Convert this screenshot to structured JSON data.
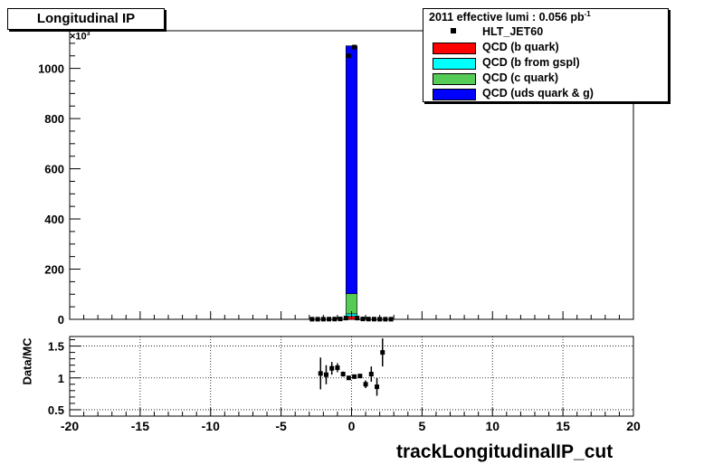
{
  "title": "Longitudinal IP",
  "legend": {
    "header": "2011 effective lumi : 0.056  pb",
    "header_sup": "-1",
    "items": [
      {
        "label": "HLT_JET60",
        "kind": "marker",
        "color": "#000000"
      },
      {
        "label": "QCD (b quark)",
        "kind": "fill",
        "color": "#ff0000"
      },
      {
        "label": "QCD (b from gspl)",
        "kind": "fill",
        "color": "#00ffff"
      },
      {
        "label": "QCD (c quark)",
        "kind": "fill",
        "color": "#55cc55"
      },
      {
        "label": "QCD (uds quark & g)",
        "kind": "fill",
        "color": "#0000ff"
      }
    ]
  },
  "xlabel": "trackLongitudinalIP_cut",
  "ratio_ylabel": "Data/MC",
  "y_exponent": "×10",
  "y_exponent_sup": "3",
  "chart_data": [
    {
      "type": "bar",
      "stacked": true,
      "xlim": [
        -20,
        20
      ],
      "ylim": [
        0,
        1150
      ],
      "y_scale_factor": 1000,
      "xticks": [
        "-20",
        "-15",
        "-10",
        "-5",
        "0",
        "5",
        "10",
        "15",
        "20"
      ],
      "yticks": [
        "0",
        "200",
        "400",
        "600",
        "800",
        "1000"
      ],
      "bin_width": 0.8,
      "bins": [
        -0.4
      ],
      "series": [
        {
          "name": "QCD (b quark)",
          "color": "#ff0000",
          "values": [
            12
          ]
        },
        {
          "name": "QCD (b from gspl)",
          "color": "#00ffff",
          "values": [
            10
          ]
        },
        {
          "name": "QCD (c quark)",
          "color": "#55cc55",
          "values": [
            80
          ]
        },
        {
          "name": "QCD (uds quark & g)",
          "color": "#0000ff",
          "values": [
            988
          ]
        }
      ],
      "data_series": {
        "name": "HLT_JET60",
        "x": [
          -2.8,
          -2.4,
          -2.0,
          -1.6,
          -1.2,
          -0.8,
          -0.4,
          -0.2,
          0.2,
          0.4,
          0.8,
          1.2,
          1.6,
          2.0,
          2.4,
          2.8
        ],
        "y": [
          0.5,
          0.5,
          0.6,
          0.8,
          1.0,
          1.5,
          5,
          1050,
          1085,
          5,
          1.5,
          1.0,
          0.8,
          0.6,
          0.5,
          0.5
        ]
      }
    },
    {
      "type": "scatter",
      "ylabel": "Data/MC",
      "xlim": [
        -20,
        20
      ],
      "ylim": [
        0.4,
        1.65
      ],
      "yticks": [
        "0.5",
        "1",
        "1.5"
      ],
      "grid": true,
      "points": [
        {
          "x": -2.2,
          "y": 1.07,
          "err": 0.25
        },
        {
          "x": -1.8,
          "y": 1.05,
          "err": 0.15
        },
        {
          "x": -1.4,
          "y": 1.15,
          "err": 0.1
        },
        {
          "x": -1.0,
          "y": 1.16,
          "err": 0.07
        },
        {
          "x": -0.6,
          "y": 1.06,
          "err": 0.04
        },
        {
          "x": -0.2,
          "y": 1.0,
          "err": 0.01
        },
        {
          "x": 0.2,
          "y": 1.02,
          "err": 0.01
        },
        {
          "x": 0.6,
          "y": 1.03,
          "err": 0.03
        },
        {
          "x": 1.0,
          "y": 0.9,
          "err": 0.06
        },
        {
          "x": 1.4,
          "y": 1.06,
          "err": 0.12
        },
        {
          "x": 1.8,
          "y": 0.86,
          "err": 0.14
        },
        {
          "x": 2.2,
          "y": 1.4,
          "err": 0.22
        }
      ]
    }
  ]
}
